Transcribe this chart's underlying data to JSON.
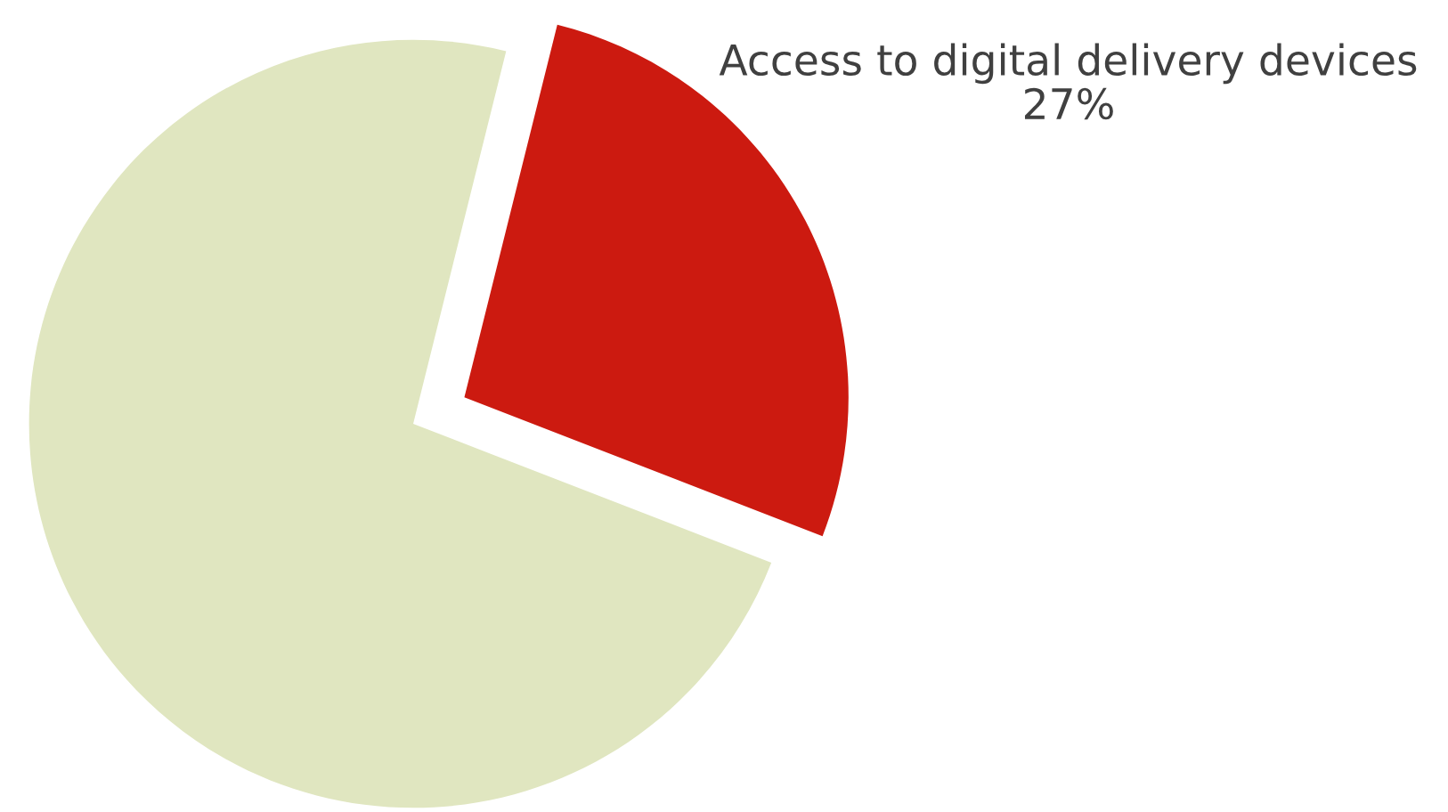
{
  "chart_data": {
    "type": "pie",
    "categories": [
      "Access to digital delivery devices",
      null
    ],
    "values": [
      27,
      73
    ],
    "colors": [
      "#cc1a10",
      "#e0e6c0"
    ],
    "value_labels": [
      "27%",
      null
    ]
  }
}
